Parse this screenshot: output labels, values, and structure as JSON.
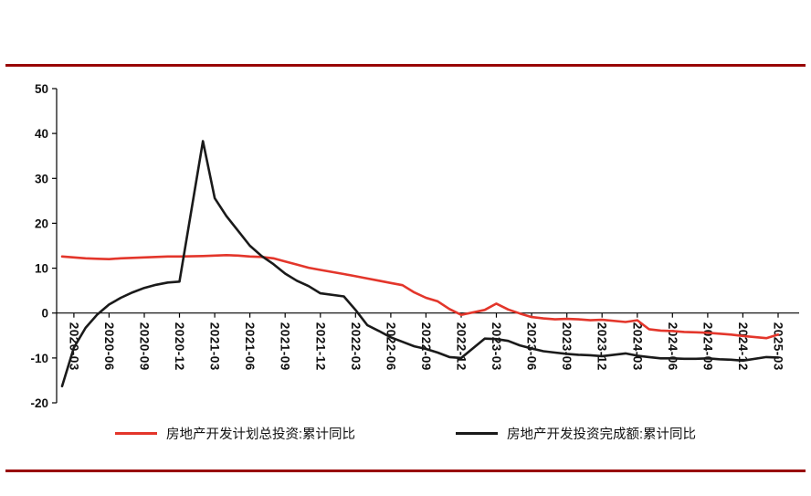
{
  "page": {
    "background": "#ffffff",
    "rule_color": "#990000"
  },
  "chart_data": {
    "type": "line",
    "title": "",
    "xlabel": "",
    "ylabel": "",
    "ylim": [
      -20,
      50
    ],
    "yticks": [
      50,
      40,
      30,
      20,
      10,
      0,
      -10,
      -20
    ],
    "grid": false,
    "legend_position": "bottom",
    "x": [
      "2020-02",
      "2020-03",
      "2020-04",
      "2020-05",
      "2020-06",
      "2020-07",
      "2020-08",
      "2020-09",
      "2020-10",
      "2020-11",
      "2020-12",
      "2021-02",
      "2021-03",
      "2021-04",
      "2021-05",
      "2021-06",
      "2021-07",
      "2021-08",
      "2021-09",
      "2021-10",
      "2021-11",
      "2021-12",
      "2022-02",
      "2022-03",
      "2022-04",
      "2022-05",
      "2022-06",
      "2022-07",
      "2022-08",
      "2022-09",
      "2022-10",
      "2022-11",
      "2022-12",
      "2023-02",
      "2023-03",
      "2023-04",
      "2023-05",
      "2023-06",
      "2023-07",
      "2023-08",
      "2023-09",
      "2023-10",
      "2023-11",
      "2023-12",
      "2024-02",
      "2024-03",
      "2024-04",
      "2024-05",
      "2024-06",
      "2024-07",
      "2024-08",
      "2024-09",
      "2024-10",
      "2024-11",
      "2024-12",
      "2025-02",
      "2025-03"
    ],
    "xticks": [
      "2020-03",
      "2020-06",
      "2020-09",
      "2020-12",
      "2021-03",
      "2021-06",
      "2021-09",
      "2021-12",
      "2022-03",
      "2022-06",
      "2022-09",
      "2022-12",
      "2023-03",
      "2023-06",
      "2023-09",
      "2023-12",
      "2024-03",
      "2024-06",
      "2024-09",
      "2024-12",
      "2025-03"
    ],
    "series": [
      {
        "name": "房地产开发计划总投资:累计同比",
        "color": "#e3362b",
        "values": [
          12.6,
          12.4,
          12.2,
          12.1,
          12.0,
          12.2,
          12.3,
          12.4,
          12.5,
          12.6,
          12.6,
          12.7,
          12.8,
          12.9,
          12.8,
          12.6,
          12.5,
          12.2,
          11.5,
          10.8,
          10.1,
          9.6,
          8.7,
          8.2,
          7.7,
          7.2,
          6.7,
          6.2,
          4.6,
          3.4,
          2.6,
          0.9,
          -0.4,
          0.7,
          2.1,
          0.8,
          -0.1,
          -0.9,
          -1.2,
          -1.4,
          -1.3,
          -1.4,
          -1.6,
          -1.5,
          -2.0,
          -1.6,
          -3.6,
          -3.9,
          -4.0,
          -4.2,
          -4.3,
          -4.4,
          -4.6,
          -4.8,
          -5.1,
          -5.6,
          -4.8
        ]
      },
      {
        "name": "房地产开发投资完成额:累计同比",
        "color": "#1a1a1a",
        "values": [
          -16.3,
          -7.7,
          -3.3,
          -0.3,
          1.9,
          3.4,
          4.6,
          5.6,
          6.3,
          6.8,
          7.0,
          38.3,
          25.6,
          21.6,
          18.3,
          15.0,
          12.7,
          10.9,
          8.8,
          7.2,
          6.0,
          4.4,
          3.7,
          0.7,
          -2.7,
          -4.0,
          -5.4,
          -6.4,
          -7.4,
          -8.0,
          -8.8,
          -9.8,
          -10.0,
          -5.7,
          -5.8,
          -6.2,
          -7.2,
          -7.9,
          -8.5,
          -8.8,
          -9.1,
          -9.3,
          -9.4,
          -9.6,
          -9.0,
          -9.5,
          -9.8,
          -10.1,
          -10.1,
          -10.2,
          -10.2,
          -10.1,
          -10.3,
          -10.4,
          -10.6,
          -9.8,
          -9.9
        ]
      }
    ]
  }
}
